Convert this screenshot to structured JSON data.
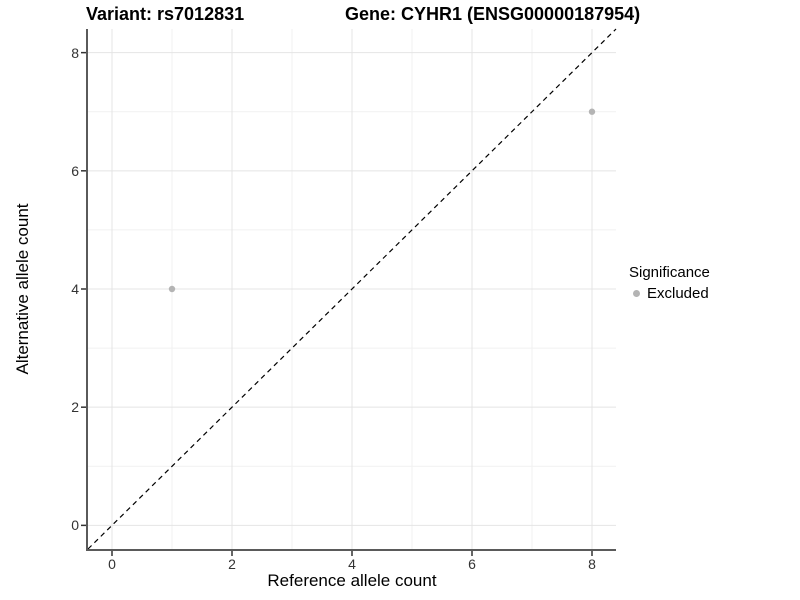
{
  "figure": {
    "title_left": "Variant: rs7012831",
    "title_right": "Gene: CYHR1 (ENSG00000187954)"
  },
  "chart_data": {
    "type": "scatter",
    "title": "Variant: rs7012831    Gene: CYHR1 (ENSG00000187954)",
    "xlabel": "Reference allele count",
    "ylabel": "Alternative allele count",
    "xlim": [
      -0.4,
      8.4
    ],
    "ylim": [
      -0.4,
      8.4
    ],
    "x_major_ticks": [
      0,
      2,
      4,
      6,
      8
    ],
    "y_major_ticks": [
      0,
      2,
      4,
      6,
      8
    ],
    "x_minor_gridlines": [
      1,
      3,
      5,
      7
    ],
    "y_minor_gridlines": [
      1,
      3,
      5,
      7
    ],
    "grid": true,
    "series": [
      {
        "name": "Excluded",
        "color": "#b4b4b4",
        "points": [
          {
            "x": 1,
            "y": 4
          },
          {
            "x": 8,
            "y": 7
          }
        ]
      }
    ],
    "identity_line": {
      "equation": "y = x",
      "style": "dashed",
      "color": "#000000",
      "from": {
        "x": -0.4,
        "y": -0.4
      },
      "to": {
        "x": 8.4,
        "y": 8.4
      }
    },
    "legend": {
      "title": "Significance",
      "position": "right",
      "entries": [
        {
          "label": "Excluded",
          "color": "#b4b4b4"
        }
      ]
    },
    "colors": {
      "background": "#ffffff",
      "grid_major": "#e4e4e4",
      "grid_minor": "#f1f1f1",
      "axis_line": "#5a5a5a",
      "tick_mark": "#333333",
      "tick_text": "#333333",
      "point": "#b4b4b4"
    }
  }
}
